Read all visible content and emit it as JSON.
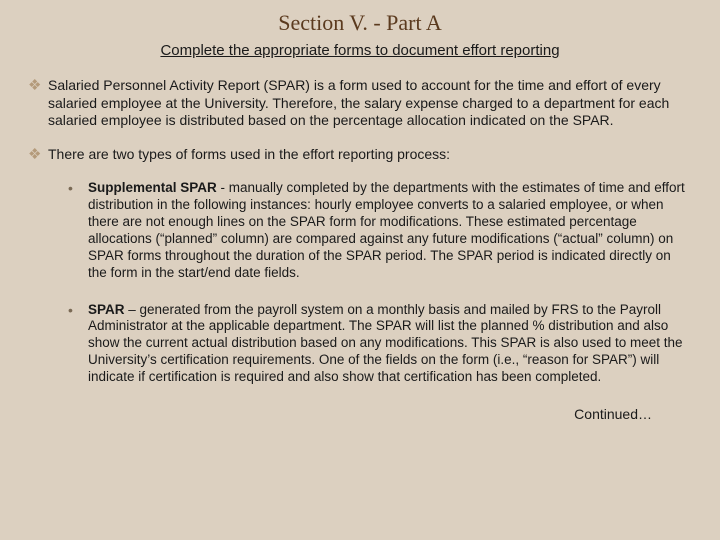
{
  "colors": {
    "background": "#dcd0c0",
    "title": "#5b3a1e",
    "diamond_bullet": "#b49a7a",
    "dot_bullet": "#7a6a55",
    "body_text": "#1a1a1a"
  },
  "typography": {
    "title_fontsize": 22,
    "title_family": "Times New Roman",
    "subtitle_fontsize": 15,
    "body_fontsize": 14,
    "sub_fontsize": 13.5,
    "line_height": 1.25
  },
  "title": "Section V. - Part A",
  "subtitle": "Complete the appropriate forms to document effort reporting",
  "bullets": {
    "b1": "Salaried Personnel Activity Report (SPAR) is a form used to account for the time and effort of every salaried employee at the University.  Therefore, the salary expense charged to a department for each salaried employee is distributed based on the percentage allocation indicated on the SPAR.",
    "b2": "There are two types of forms used in the effort reporting process:"
  },
  "sub": {
    "s1_lead": "Supplemental SPAR",
    "s1_rest": " - manually completed by the departments with the estimates of time and effort distribution in the following instances: hourly employee converts to a salaried employee, or when there are not enough lines on the SPAR form for modifications.  These estimated percentage allocations (“planned” column) are compared against any future modifications (“actual” column) on SPAR forms throughout the duration of the SPAR period.  The SPAR period is indicated directly on the form in the start/end date fields.",
    "s2_lead": "SPAR",
    "s2_rest": " – generated from the payroll system on a monthly basis and mailed by FRS to the Payroll Administrator at the applicable department.  The SPAR will list the planned % distribution and also show the current actual distribution based on any modifications.  This SPAR is also used to meet the University’s certification requirements.  One of the fields on the form (i.e., “reason for SPAR”) will indicate if certification is required and also show that certification has been completed."
  },
  "continued": "Continued…",
  "glyphs": {
    "diamond": "❖",
    "dot": "•"
  }
}
